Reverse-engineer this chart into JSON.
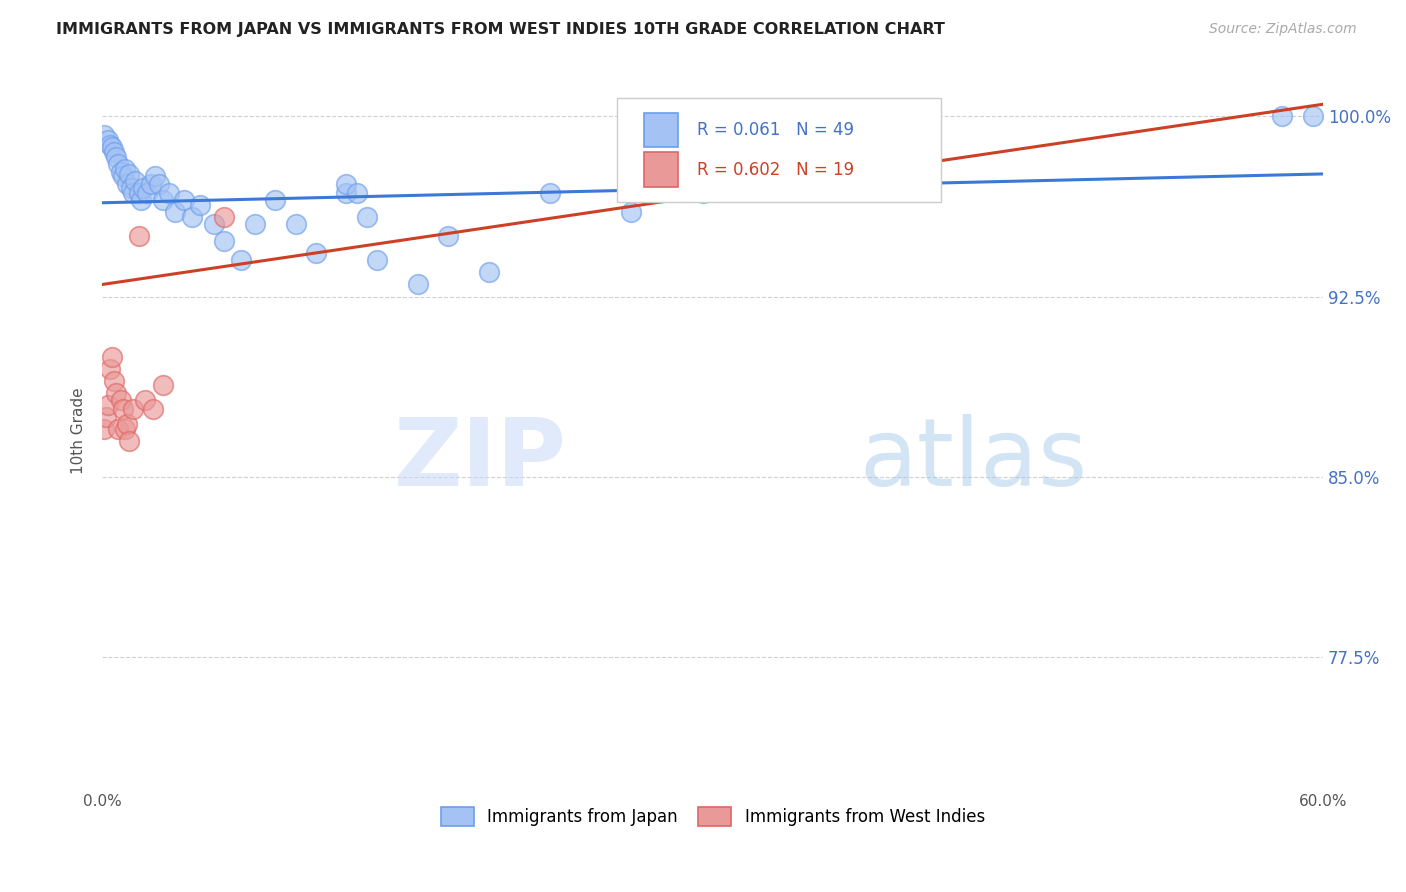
{
  "title": "IMMIGRANTS FROM JAPAN VS IMMIGRANTS FROM WEST INDIES 10TH GRADE CORRELATION CHART",
  "source": "Source: ZipAtlas.com",
  "ylabel": "10th Grade",
  "x_min": 0.0,
  "x_max": 0.6,
  "y_min": 0.72,
  "y_max": 1.018,
  "x_tick_positions": [
    0.0,
    0.1,
    0.2,
    0.3,
    0.4,
    0.5,
    0.6
  ],
  "x_tick_labels": [
    "0.0%",
    "",
    "",
    "",
    "",
    "",
    "60.0%"
  ],
  "y_tick_positions": [
    0.775,
    0.85,
    0.925,
    1.0
  ],
  "y_tick_labels": [
    "77.5%",
    "85.0%",
    "92.5%",
    "100.0%"
  ],
  "legend_R1": "R = 0.061",
  "legend_N1": "N = 49",
  "legend_R2": "R = 0.602",
  "legend_N2": "N = 19",
  "color_japan_fill": "#a4c2f4",
  "color_japan_edge": "#6d9eeb",
  "color_wi_fill": "#ea9999",
  "color_wi_edge": "#e06666",
  "color_japan_line": "#3c78d8",
  "color_wi_line": "#cc4125",
  "japan_blue_line_y0": 0.964,
  "japan_blue_line_y1": 0.976,
  "wi_pink_line_x0": 0.0,
  "wi_pink_line_y0": 0.93,
  "wi_pink_line_x1": 0.6,
  "wi_pink_line_y1": 1.005,
  "japan_x": [
    0.001,
    0.003,
    0.004,
    0.005,
    0.006,
    0.007,
    0.008,
    0.009,
    0.01,
    0.011,
    0.012,
    0.013,
    0.014,
    0.015,
    0.016,
    0.018,
    0.019,
    0.02,
    0.022,
    0.024,
    0.026,
    0.028,
    0.03,
    0.033,
    0.036,
    0.04,
    0.044,
    0.048,
    0.055,
    0.06,
    0.068,
    0.075,
    0.085,
    0.095,
    0.105,
    0.12,
    0.135,
    0.155,
    0.17,
    0.19,
    0.22,
    0.26,
    0.12,
    0.125,
    0.13,
    0.295,
    0.38,
    0.58,
    0.595
  ],
  "japan_y": [
    0.992,
    0.99,
    0.988,
    0.987,
    0.985,
    0.983,
    0.98,
    0.977,
    0.975,
    0.978,
    0.972,
    0.976,
    0.97,
    0.968,
    0.973,
    0.968,
    0.965,
    0.97,
    0.968,
    0.972,
    0.975,
    0.972,
    0.965,
    0.968,
    0.96,
    0.965,
    0.958,
    0.963,
    0.955,
    0.948,
    0.94,
    0.955,
    0.965,
    0.955,
    0.943,
    0.968,
    0.94,
    0.93,
    0.95,
    0.935,
    0.968,
    0.96,
    0.972,
    0.968,
    0.958,
    0.968,
    1.0,
    1.0,
    1.0
  ],
  "wi_x": [
    0.001,
    0.002,
    0.003,
    0.004,
    0.005,
    0.006,
    0.007,
    0.008,
    0.009,
    0.01,
    0.011,
    0.012,
    0.013,
    0.015,
    0.018,
    0.021,
    0.025,
    0.03,
    0.06
  ],
  "wi_y": [
    0.87,
    0.875,
    0.88,
    0.895,
    0.9,
    0.89,
    0.885,
    0.87,
    0.882,
    0.878,
    0.87,
    0.872,
    0.865,
    0.878,
    0.95,
    0.882,
    0.878,
    0.888,
    0.958
  ]
}
